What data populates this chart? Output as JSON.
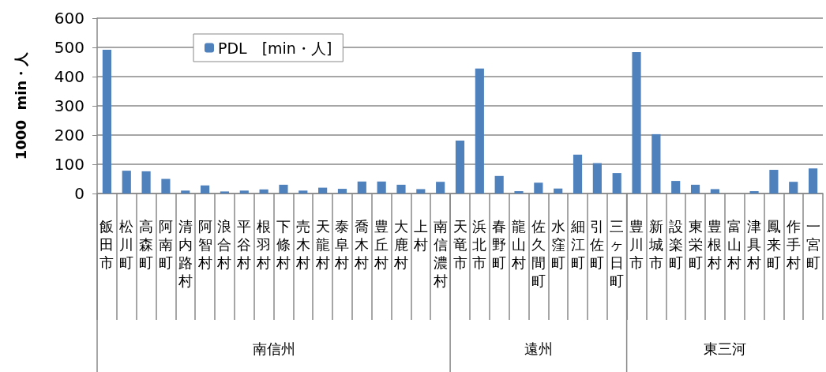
{
  "chart_data": {
    "type": "bar",
    "ylabel": "1000  min・人",
    "categories": [
      "飯田市",
      "松川町",
      "高森町",
      "阿南町",
      "清内路村",
      "阿智村",
      "浪合村",
      "平谷村",
      "根羽村",
      "下條村",
      "売木村",
      "天龍村",
      "泰阜村",
      "喬木村",
      "豊丘村",
      "大鹿村",
      "上村",
      "南信濃村",
      "天竜市",
      "浜北市",
      "春野町",
      "龍山村",
      "佐久間町",
      "水窪町",
      "細江町",
      "引佐町",
      "三ヶ日町",
      "豊川市",
      "新城市",
      "設楽町",
      "東栄町",
      "豊根村",
      "富山村",
      "津具村",
      "鳳来町",
      "作手村",
      "一宮町"
    ],
    "series": [
      {
        "name": "PDL　[min・人]",
        "color": "#4f81bd",
        "values": [
          492,
          78,
          76,
          50,
          10,
          28,
          7,
          10,
          14,
          30,
          10,
          20,
          16,
          41,
          41,
          30,
          15,
          40,
          181,
          428,
          60,
          8,
          37,
          17,
          133,
          104,
          70,
          484,
          203,
          43,
          30,
          15,
          0,
          8,
          81,
          40,
          86
        ]
      }
    ],
    "ylim": [
      0,
      600
    ],
    "yticks": [
      0,
      100,
      200,
      300,
      400,
      500,
      600
    ],
    "grid": "y",
    "legend": "top left",
    "annotations": [
      "南信州",
      "遠州",
      "東三河"
    ]
  }
}
